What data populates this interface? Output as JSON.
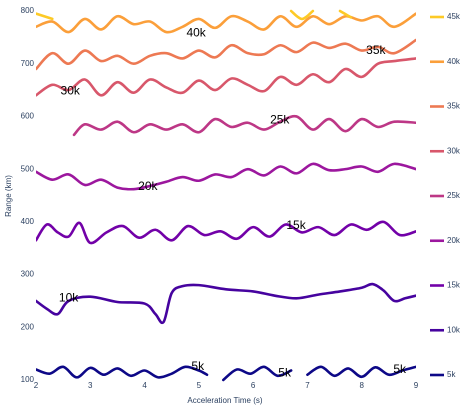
{
  "chart_data": {
    "type": "contour",
    "x_label": "Acceleration Time (s)",
    "y_label": "Range (km)",
    "xlim": [
      2,
      9
    ],
    "ylim": [
      100,
      800
    ],
    "xticks": [
      2,
      3,
      4,
      5,
      6,
      7,
      8,
      9
    ],
    "yticks": [
      100,
      200,
      300,
      400,
      500,
      600,
      700,
      800
    ],
    "series": [
      {
        "name": "5k",
        "color": "#0d0887",
        "x": [
          2,
          2.25,
          2.5,
          2.75,
          3,
          3.25,
          3.5,
          3.75,
          4,
          4.25,
          4.5,
          4.75,
          5,
          5.15,
          null,
          5.45,
          5.7,
          5.95,
          6.2,
          6.45,
          6.7,
          null,
          7,
          7.25,
          7.5,
          7.75,
          8,
          8.25,
          8.5,
          8.75,
          9
        ],
        "values": [
          120,
          112,
          125,
          105,
          123,
          110,
          122,
          108,
          118,
          105,
          112,
          125,
          118,
          110,
          null,
          100,
          120,
          112,
          125,
          108,
          118,
          null,
          110,
          125,
          108,
          122,
          106,
          124,
          110,
          118,
          125
        ]
      },
      {
        "name": "10k",
        "color": "#46039f",
        "x": [
          2,
          2.2,
          2.4,
          2.6,
          3,
          3.5,
          4,
          4.2,
          4.35,
          4.5,
          4.7,
          5,
          5.5,
          6,
          6.4,
          6.8,
          7.2,
          7.6,
          8,
          8.2,
          8.4,
          8.6,
          8.8,
          9
        ],
        "values": [
          250,
          235,
          225,
          250,
          258,
          248,
          245,
          225,
          210,
          265,
          278,
          280,
          272,
          268,
          260,
          255,
          262,
          268,
          275,
          282,
          270,
          250,
          255,
          260
        ]
      },
      {
        "name": "15k",
        "color": "#7201a8",
        "x": [
          2,
          2.2,
          2.4,
          2.6,
          2.8,
          3,
          3.3,
          3.6,
          3.9,
          4.2,
          4.5,
          4.8,
          5.1,
          5.4,
          5.7,
          6,
          6.3,
          6.6,
          6.9,
          7.2,
          7.5,
          7.8,
          8.1,
          8.4,
          8.7,
          9
        ],
        "values": [
          365,
          395,
          380,
          372,
          398,
          360,
          380,
          392,
          370,
          385,
          365,
          392,
          375,
          382,
          368,
          390,
          372,
          395,
          380,
          390,
          375,
          395,
          385,
          400,
          375,
          382
        ]
      },
      {
        "name": "20k",
        "color": "#9c179e",
        "x": [
          2,
          2.3,
          2.6,
          2.9,
          3.2,
          3.5,
          3.8,
          4.1,
          4.4,
          4.7,
          5,
          5.3,
          5.6,
          5.9,
          6.2,
          6.5,
          6.8,
          7.1,
          7.4,
          7.7,
          8,
          8.3,
          8.6,
          9
        ],
        "values": [
          495,
          480,
          490,
          470,
          480,
          465,
          462,
          468,
          476,
          485,
          478,
          490,
          485,
          500,
          488,
          505,
          492,
          510,
          498,
          500,
          505,
          495,
          510,
          500
        ]
      },
      {
        "name": "25k",
        "color": "#bd3786",
        "x": [
          2.7,
          2.9,
          3.2,
          3.5,
          3.8,
          4.1,
          4.4,
          4.7,
          5,
          5.3,
          5.6,
          5.9,
          6.2,
          6.5,
          6.8,
          7.1,
          7.4,
          7.7,
          8,
          8.3,
          8.6,
          9
        ],
        "values": [
          565,
          585,
          575,
          590,
          570,
          585,
          575,
          585,
          570,
          595,
          580,
          588,
          575,
          590,
          600,
          575,
          595,
          572,
          595,
          580,
          590,
          588
        ]
      },
      {
        "name": "30k",
        "color": "#d8576b",
        "x": [
          2,
          2.3,
          2.6,
          2.9,
          3.2,
          3.5,
          3.8,
          4.1,
          4.4,
          4.7,
          5,
          5.3,
          5.6,
          5.9,
          6.2,
          6.5,
          6.8,
          7.1,
          7.4,
          7.7,
          8,
          8.3,
          8.6,
          9
        ],
        "values": [
          640,
          660,
          650,
          670,
          640,
          665,
          645,
          670,
          655,
          645,
          668,
          650,
          672,
          660,
          648,
          675,
          660,
          680,
          665,
          690,
          675,
          700,
          705,
          710
        ]
      },
      {
        "name": "35k",
        "color": "#ed7953",
        "x": [
          2,
          2.3,
          2.6,
          2.9,
          3.2,
          3.5,
          3.8,
          4.1,
          4.4,
          4.7,
          5,
          5.3,
          5.6,
          5.9,
          6.2,
          6.5,
          6.8,
          7.1,
          7.4,
          7.7,
          8,
          8.3,
          8.6,
          9
        ],
        "values": [
          690,
          720,
          700,
          725,
          705,
          715,
          700,
          715,
          720,
          710,
          725,
          712,
          735,
          720,
          718,
          735,
          722,
          740,
          730,
          738,
          725,
          732,
          720,
          745
        ]
      },
      {
        "name": "40k",
        "color": "#fb9f3a",
        "x": [
          2,
          2.3,
          2.6,
          2.9,
          3.2,
          3.5,
          3.8,
          4.1,
          4.4,
          4.7,
          5,
          5.3,
          5.6,
          5.9,
          6.2,
          6.5,
          6.8,
          7.1,
          7.4,
          7.7,
          8,
          8.3,
          8.6,
          9
        ],
        "values": [
          770,
          780,
          760,
          785,
          765,
          790,
          775,
          780,
          760,
          770,
          785,
          768,
          790,
          780,
          765,
          790,
          770,
          790,
          775,
          790,
          782,
          790,
          770,
          795
        ]
      },
      {
        "name": "45k",
        "color": "#fdca26",
        "x": [
          2,
          2.3,
          null,
          6.7,
          6.9,
          7.1,
          null,
          7.6,
          7.8
        ],
        "values": [
          795,
          785,
          null,
          800,
          785,
          800,
          null,
          800,
          788
        ]
      }
    ],
    "annotations": [
      {
        "text": "5k",
        "x": 4.98,
        "y": 125
      },
      {
        "text": "5k",
        "x": 6.58,
        "y": 113
      },
      {
        "text": "5k",
        "x": 8.7,
        "y": 119
      },
      {
        "text": "10k",
        "x": 2.6,
        "y": 255
      },
      {
        "text": "15k",
        "x": 6.79,
        "y": 392
      },
      {
        "text": "20k",
        "x": 4.06,
        "y": 466
      },
      {
        "text": "25k",
        "x": 6.49,
        "y": 593
      },
      {
        "text": "30k",
        "x": 2.63,
        "y": 648
      },
      {
        "text": "35k",
        "x": 8.26,
        "y": 724
      },
      {
        "text": "40k",
        "x": 4.95,
        "y": 758
      }
    ]
  }
}
